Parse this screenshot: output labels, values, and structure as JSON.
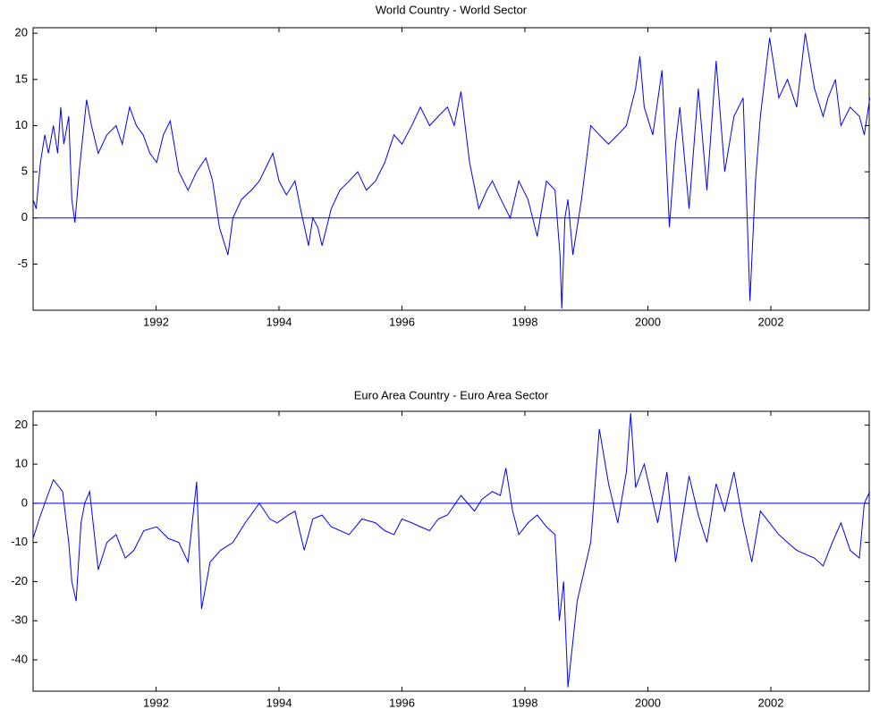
{
  "chart_data": [
    {
      "type": "line",
      "title": "World Country - World Sector",
      "color": "#0000ff",
      "x": [
        1990.0,
        1990.05,
        1990.12,
        1990.19,
        1990.25,
        1990.33,
        1990.4,
        1990.45,
        1990.5,
        1990.58,
        1990.63,
        1990.68,
        1990.75,
        1990.87,
        1990.95,
        1991.06,
        1991.2,
        1991.35,
        1991.45,
        1991.57,
        1991.68,
        1991.79,
        1991.9,
        1992.01,
        1992.12,
        1992.23,
        1992.37,
        1992.52,
        1992.66,
        1992.81,
        1992.92,
        1993.03,
        1993.17,
        1993.25,
        1993.39,
        1993.55,
        1993.68,
        1993.9,
        1994.0,
        1994.12,
        1994.26,
        1994.35,
        1994.48,
        1994.55,
        1994.63,
        1994.7,
        1994.85,
        1994.99,
        1995.14,
        1995.28,
        1995.42,
        1995.57,
        1995.72,
        1995.87,
        1996.0,
        1996.16,
        1996.3,
        1996.45,
        1996.59,
        1996.74,
        1996.85,
        1996.96,
        1997.1,
        1997.25,
        1997.38,
        1997.47,
        1997.61,
        1997.76,
        1997.9,
        1998.05,
        1998.2,
        1998.35,
        1998.49,
        1998.57,
        1998.6,
        1998.65,
        1998.7,
        1998.78,
        1998.92,
        1999.07,
        1999.21,
        1999.36,
        1999.51,
        1999.65,
        1999.8,
        1999.87,
        1999.94,
        2000.08,
        2000.23,
        2000.35,
        2000.45,
        2000.52,
        2000.67,
        2000.82,
        2000.96,
        2001.11,
        2001.25,
        2001.4,
        2001.55,
        2001.66,
        2001.75,
        2001.83,
        2001.98,
        2002.13,
        2002.27,
        2002.42,
        2002.56,
        2002.71,
        2002.85,
        2002.93,
        2003.05,
        2003.14,
        2003.29,
        2003.44,
        2003.52,
        2003.61
      ],
      "values": [
        2,
        1,
        6,
        9,
        7,
        10,
        7,
        12,
        8,
        11,
        2,
        -0.5,
        5,
        12.8,
        10,
        7,
        9,
        10,
        8,
        12,
        10,
        9,
        7,
        6,
        9,
        10.5,
        5,
        3,
        5,
        6.5,
        4,
        -1,
        -4,
        0,
        2,
        3,
        4,
        7,
        4,
        2.5,
        4,
        1,
        -3,
        0,
        -1,
        -3,
        1,
        3,
        4,
        5,
        3,
        4,
        6,
        9,
        8,
        10,
        12,
        10,
        11,
        12,
        10,
        13.7,
        6,
        1,
        3,
        4,
        2,
        0,
        4,
        2,
        -2,
        4,
        3,
        -4,
        -9.8,
        0,
        2,
        -4,
        2,
        10,
        9,
        8,
        9,
        10,
        14,
        17.5,
        12,
        9,
        16,
        -1,
        8,
        12,
        1,
        14,
        3,
        17,
        5,
        11,
        13,
        -9,
        4,
        11,
        19.5,
        13,
        15,
        12,
        20,
        14,
        11,
        13,
        15,
        10,
        12,
        11,
        9,
        13
      ],
      "xlim": [
        1990,
        2003.6
      ],
      "ylim": [
        -10,
        20.6
      ],
      "xticks": [
        1992,
        1994,
        1996,
        1998,
        2000,
        2002
      ],
      "yticks": [
        -5,
        0,
        5,
        10,
        15,
        20
      ],
      "hline": 0
    },
    {
      "type": "line",
      "title": "Euro Area Country - Euro Area Sector",
      "color": "#0000ff",
      "x": [
        1990.0,
        1990.1,
        1990.19,
        1990.33,
        1990.48,
        1990.58,
        1990.63,
        1990.7,
        1990.78,
        1990.84,
        1990.92,
        1991.06,
        1991.2,
        1991.35,
        1991.5,
        1991.64,
        1991.8,
        1992.01,
        1992.2,
        1992.37,
        1992.52,
        1992.66,
        1992.74,
        1992.88,
        1993.05,
        1993.25,
        1993.45,
        1993.68,
        1993.85,
        1993.97,
        1994.15,
        1994.26,
        1994.41,
        1994.55,
        1994.7,
        1994.85,
        1995.14,
        1995.35,
        1995.57,
        1995.72,
        1995.87,
        1996.0,
        1996.16,
        1996.3,
        1996.45,
        1996.59,
        1996.74,
        1996.96,
        1997.18,
        1997.3,
        1997.47,
        1997.6,
        1997.69,
        1997.8,
        1997.9,
        1998.05,
        1998.2,
        1998.35,
        1998.49,
        1998.56,
        1998.63,
        1998.7,
        1998.85,
        1999.07,
        1999.21,
        1999.36,
        1999.51,
        1999.65,
        1999.72,
        1999.8,
        1999.94,
        2000.16,
        2000.31,
        2000.45,
        2000.67,
        2000.82,
        2000.96,
        2001.11,
        2001.25,
        2001.4,
        2001.55,
        2001.69,
        2001.83,
        2001.98,
        2002.13,
        2002.27,
        2002.42,
        2002.56,
        2002.71,
        2002.85,
        2003.0,
        2003.14,
        2003.29,
        2003.44,
        2003.52,
        2003.61
      ],
      "values": [
        -9,
        -4,
        0,
        6,
        3,
        -10,
        -20,
        -25,
        -5,
        0,
        3,
        -17,
        -10,
        -8,
        -14,
        -12,
        -7,
        -6,
        -9,
        -10,
        -15,
        5.5,
        -27,
        -15,
        -12,
        -10,
        -5,
        0,
        -4,
        -5,
        -3,
        -2,
        -12,
        -4,
        -3,
        -6,
        -8,
        -4,
        -5,
        -7,
        -8,
        -4,
        -5,
        -6,
        -7,
        -4,
        -3,
        2,
        -2,
        1,
        3,
        2,
        9,
        -2,
        -8,
        -5,
        -3,
        -6,
        -8,
        -30,
        -20,
        -47,
        -25,
        -10,
        19,
        5,
        -5,
        8,
        23,
        4,
        10,
        -5,
        8,
        -15,
        7,
        -3,
        -10,
        5,
        -2,
        8,
        -5,
        -15,
        -2,
        -5,
        -8,
        -10,
        -12,
        -13,
        -14,
        -16,
        -10,
        -5,
        -12,
        -14,
        0,
        3
      ],
      "xlim": [
        1990,
        2003.6
      ],
      "ylim": [
        -48,
        23.5
      ],
      "xticks": [
        1992,
        1994,
        1996,
        1998,
        2000,
        2002
      ],
      "yticks": [
        -40,
        -30,
        -20,
        -10,
        0,
        10,
        20
      ],
      "hline": 0
    }
  ]
}
